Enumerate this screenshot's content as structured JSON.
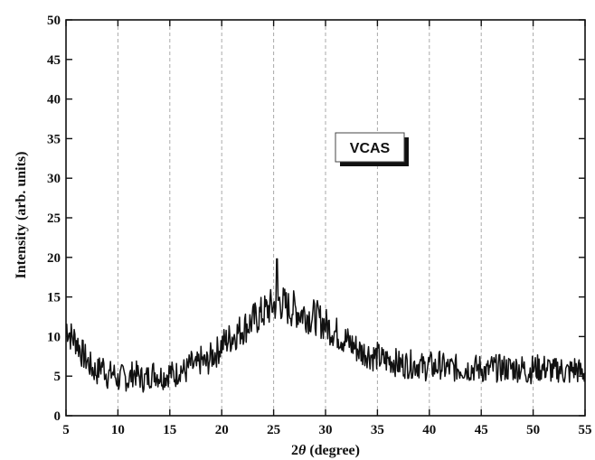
{
  "chart_data": {
    "type": "line",
    "xlabel_prefix": "2",
    "xlabel_symbol": "θ",
    "xlabel_suffix": " (degree)",
    "ylabel": "Intensity (arb. units)",
    "xlim": [
      5,
      55
    ],
    "ylim": [
      0,
      50
    ],
    "x_ticks": [
      "5",
      "10",
      "15",
      "20",
      "25",
      "30",
      "35",
      "40",
      "45",
      "50",
      "55"
    ],
    "y_ticks": [
      "0",
      "5",
      "10",
      "15",
      "20",
      "25",
      "30",
      "35",
      "40",
      "45",
      "50"
    ],
    "grid": "vertical-dashed",
    "legend_placement": "upper-center-right",
    "series": [
      {
        "name": "VCAS",
        "color": "#111111",
        "x": [
          5,
          5.5,
          6,
          6.5,
          7,
          7.5,
          8,
          8.5,
          9,
          9.5,
          10,
          10.5,
          11,
          11.5,
          12,
          12.5,
          13,
          13.5,
          14,
          14.5,
          15,
          15.5,
          16,
          16.5,
          17,
          17.5,
          18,
          18.5,
          19,
          19.5,
          20,
          20.5,
          21,
          21.5,
          22,
          22.5,
          23,
          23.5,
          24,
          24.5,
          25,
          25.5,
          26,
          26.5,
          27,
          27.5,
          28,
          28.5,
          29,
          29.5,
          30,
          30.5,
          31,
          31.5,
          32,
          32.5,
          33,
          33.5,
          34,
          34.5,
          35,
          35.5,
          36,
          36.5,
          37,
          37.5,
          38,
          38.5,
          39,
          39.5,
          40,
          40.5,
          41,
          41.5,
          42,
          42.5,
          43,
          43.5,
          44,
          44.5,
          45,
          45.5,
          46,
          46.5,
          47,
          47.5,
          48,
          48.5,
          49,
          49.5,
          50,
          50.5,
          51,
          51.5,
          52,
          52.5,
          53,
          53.5,
          54,
          54.5,
          55
        ],
        "y": [
          11.5,
          10.0,
          9.5,
          8.0,
          7.0,
          6.0,
          5.5,
          6.5,
          5.0,
          5.5,
          4.5,
          5.0,
          4.5,
          5.5,
          5.0,
          4.5,
          5.0,
          5.5,
          5.0,
          5.0,
          5.5,
          5.0,
          6.0,
          5.5,
          6.5,
          6.0,
          7.0,
          6.5,
          7.5,
          8.0,
          9.0,
          9.5,
          10.0,
          10.5,
          11.0,
          11.5,
          12.0,
          12.5,
          13.0,
          13.5,
          14.0,
          14.5,
          14.0,
          13.5,
          13.5,
          13.0,
          13.0,
          12.5,
          12.5,
          12.0,
          11.5,
          11.0,
          10.5,
          10.0,
          9.5,
          9.0,
          8.5,
          8.0,
          8.0,
          7.5,
          7.5,
          7.0,
          7.0,
          7.0,
          6.5,
          6.5,
          6.5,
          6.5,
          6.5,
          6.0,
          6.5,
          6.0,
          6.5,
          6.0,
          6.0,
          6.0,
          6.0,
          6.0,
          6.0,
          6.0,
          6.0,
          5.5,
          6.0,
          6.0,
          6.0,
          6.0,
          6.0,
          6.0,
          6.0,
          5.5,
          6.0,
          6.0,
          6.0,
          6.0,
          5.5,
          6.0,
          5.5,
          5.5,
          6.0,
          5.5,
          5.5
        ]
      }
    ]
  }
}
